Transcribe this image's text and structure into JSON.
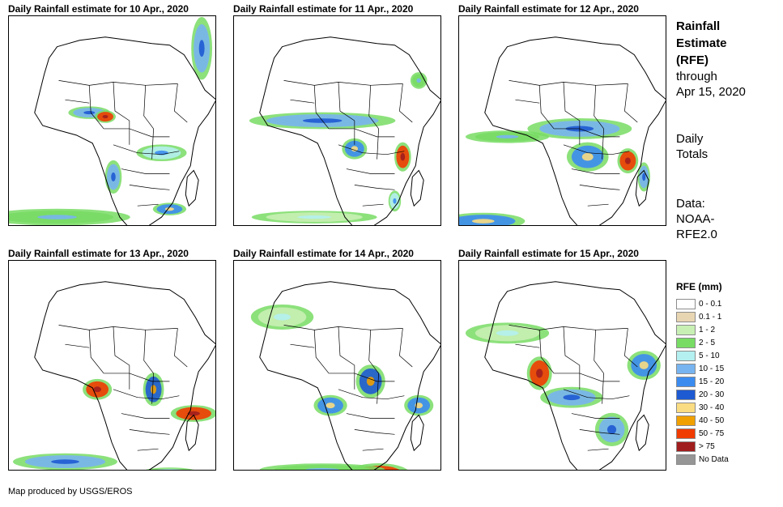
{
  "panels": [
    {
      "title": "Daily Rainfall estimate for 10 Apr., 2020"
    },
    {
      "title": "Daily Rainfall estimate for 11 Apr., 2020"
    },
    {
      "title": "Daily Rainfall estimate for 12 Apr., 2020"
    },
    {
      "title": "Daily Rainfall estimate for 13 Apr., 2020"
    },
    {
      "title": "Daily Rainfall estimate for 14 Apr., 2020"
    },
    {
      "title": "Daily Rainfall estimate for 15 Apr., 2020"
    }
  ],
  "sidebar": {
    "title_line1": "Rainfall",
    "title_line2": "Estimate",
    "title_line3": "(RFE)",
    "through_line1": "through",
    "through_line2": "Apr 15, 2020",
    "totals_line1": "Daily",
    "totals_line2": "Totals",
    "data_line1": "Data:",
    "data_line2": "NOAA-",
    "data_line3": "RFE2.0"
  },
  "legend": {
    "title": "RFE (mm)",
    "items": [
      {
        "label": "0 - 0.1",
        "color": "#ffffff"
      },
      {
        "label": "0.1 - 1",
        "color": "#e8d6b3"
      },
      {
        "label": "1 - 2",
        "color": "#c8f0b4"
      },
      {
        "label": "2 - 5",
        "color": "#78dc64"
      },
      {
        "label": "5 - 10",
        "color": "#b4f0f0"
      },
      {
        "label": "10 - 15",
        "color": "#78b4f0"
      },
      {
        "label": "15 - 20",
        "color": "#3c8cf0"
      },
      {
        "label": "20 - 30",
        "color": "#1e5ad2"
      },
      {
        "label": "30 - 40",
        "color": "#fadc82"
      },
      {
        "label": "40 - 50",
        "color": "#f0a000"
      },
      {
        "label": "50 - 75",
        "color": "#f03c00"
      },
      {
        "label": "> 75",
        "color": "#a01e1e"
      },
      {
        "label": "No Data",
        "color": "#969696"
      }
    ]
  },
  "credit": "Map produced by USGS/EROS"
}
